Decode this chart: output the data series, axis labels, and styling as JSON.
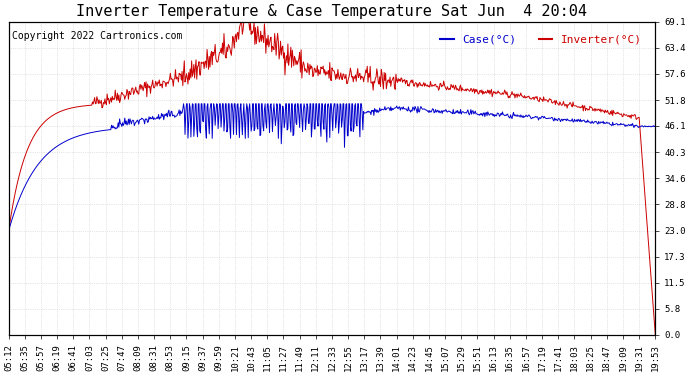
{
  "title": "Inverter Temperature & Case Temperature Sat Jun  4 20:04",
  "copyright": "Copyright 2022 Cartronics.com",
  "legend_case": "Case(°C)",
  "legend_inverter": "Inverter(°C)",
  "ylabel_right_ticks": [
    0.0,
    5.8,
    11.5,
    17.3,
    23.0,
    28.8,
    34.6,
    40.3,
    46.1,
    51.8,
    57.6,
    63.4,
    69.1
  ],
  "ylim": [
    0.0,
    69.1
  ],
  "x_labels": [
    "05:12",
    "05:35",
    "05:57",
    "06:19",
    "06:41",
    "07:03",
    "07:25",
    "07:47",
    "08:09",
    "08:31",
    "08:53",
    "09:15",
    "09:37",
    "09:59",
    "10:21",
    "10:43",
    "11:05",
    "11:27",
    "11:49",
    "12:11",
    "12:33",
    "12:55",
    "13:17",
    "13:39",
    "14:01",
    "14:23",
    "14:45",
    "15:07",
    "15:29",
    "15:51",
    "16:13",
    "16:35",
    "16:57",
    "17:19",
    "17:41",
    "18:03",
    "18:25",
    "18:47",
    "19:09",
    "19:31",
    "19:53"
  ],
  "bg_color": "#ffffff",
  "grid_color": "#cccccc",
  "case_color": "#0000cc",
  "inverter_color": "#cc0000",
  "title_fontsize": 11,
  "copyright_fontsize": 7,
  "legend_fontsize": 8,
  "tick_fontsize": 6.5
}
